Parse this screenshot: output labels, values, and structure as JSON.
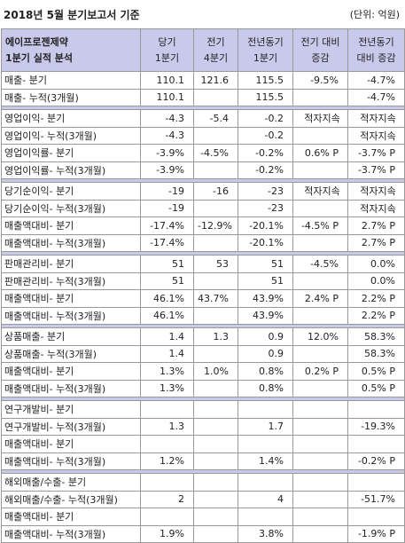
{
  "header": {
    "title": "2018년 5월 분기보고서 기준",
    "unit": "(단위: 억원)"
  },
  "table": {
    "columns": [
      [
        "에이프로젠제약",
        "1분기 실적 분석"
      ],
      [
        "당기",
        "1분기"
      ],
      [
        "전기",
        "4분기"
      ],
      [
        "전년동기",
        "1분기"
      ],
      [
        "전기 대비",
        "증감"
      ],
      [
        "전년동기",
        "대비 증감"
      ]
    ],
    "groups": [
      {
        "rows": [
          [
            "매출- 분기",
            "110.1",
            "121.6",
            "115.5",
            "-9.5%",
            "-4.7%"
          ],
          [
            "매출- 누적(3개월)",
            "110.1",
            null,
            "115.5",
            null,
            "-4.7%"
          ]
        ]
      },
      {
        "rows": [
          [
            "영업이익- 분기",
            "-4.3",
            "-5.4",
            "-0.2",
            "적자지속",
            "적자지속"
          ],
          [
            "영업이익- 누적(3개월)",
            "-4.3",
            null,
            "-0.2",
            null,
            "적자지속"
          ],
          [
            "영업이익률- 분기",
            "-3.9%",
            "-4.5%",
            "-0.2%",
            "0.6% P",
            "-3.7% P"
          ],
          [
            "영업이익률- 누적(3개월)",
            "-3.9%",
            null,
            "-0.2%",
            null,
            "-3.7% P"
          ]
        ]
      },
      {
        "rows": [
          [
            "당기순이익- 분기",
            "-19",
            "-16",
            "-23",
            "적자지속",
            "적자지속"
          ],
          [
            "당기순이익- 누적(3개월)",
            "-19",
            null,
            "-23",
            null,
            "적자지속"
          ],
          [
            "매출액대비- 분기",
            "-17.4%",
            "-12.9%",
            "-20.1%",
            "-4.5% P",
            "2.7% P"
          ],
          [
            "매출액대비- 누적(3개월)",
            "-17.4%",
            null,
            "-20.1%",
            null,
            "2.7% P"
          ]
        ]
      },
      {
        "rows": [
          [
            "판매관리비- 분기",
            "51",
            "53",
            "51",
            "-4.5%",
            "0.0%"
          ],
          [
            "판매관리비- 누적(3개월)",
            "51",
            null,
            "51",
            null,
            "0.0%"
          ],
          [
            "매출액대비- 분기",
            "46.1%",
            "43.7%",
            "43.9%",
            "2.4% P",
            "2.2% P"
          ],
          [
            "매출액대비- 누적(3개월)",
            "46.1%",
            null,
            "43.9%",
            null,
            "2.2% P"
          ]
        ]
      },
      {
        "rows": [
          [
            "상품매출- 분기",
            "1.4",
            "1.3",
            "0.9",
            "12.0%",
            "58.3%"
          ],
          [
            "상품매출- 누적(3개월)",
            "1.4",
            null,
            "0.9",
            null,
            "58.3%"
          ],
          [
            "매출액대비- 분기",
            "1.3%",
            "1.0%",
            "0.8%",
            "0.2% P",
            "0.5% P"
          ],
          [
            "매출액대비- 누적(3개월)",
            "1.3%",
            null,
            "0.8%",
            null,
            "0.5% P"
          ]
        ]
      },
      {
        "rows": [
          [
            "연구개발비- 분기",
            null,
            null,
            null,
            null,
            null
          ],
          [
            "연구개발비- 누적(3개월)",
            "1.3",
            null,
            "1.7",
            null,
            "-19.3%"
          ],
          [
            "매출액대비- 분기",
            null,
            null,
            null,
            null,
            null
          ],
          [
            "매출액대비- 누적(3개월)",
            "1.2%",
            null,
            "1.4%",
            null,
            "-0.2% P"
          ]
        ]
      },
      {
        "rows": [
          [
            "해외매출/수출- 분기",
            null,
            null,
            null,
            null,
            null
          ],
          [
            "해외매출/수출- 누적(3개월)",
            "2",
            null,
            "4",
            null,
            "-51.7%"
          ],
          [
            "매출액대비- 분기",
            null,
            null,
            null,
            null,
            null
          ],
          [
            "매출액대비- 누적(3개월)",
            "1.9%",
            null,
            "3.8%",
            null,
            "-1.9% P"
          ]
        ]
      }
    ]
  }
}
